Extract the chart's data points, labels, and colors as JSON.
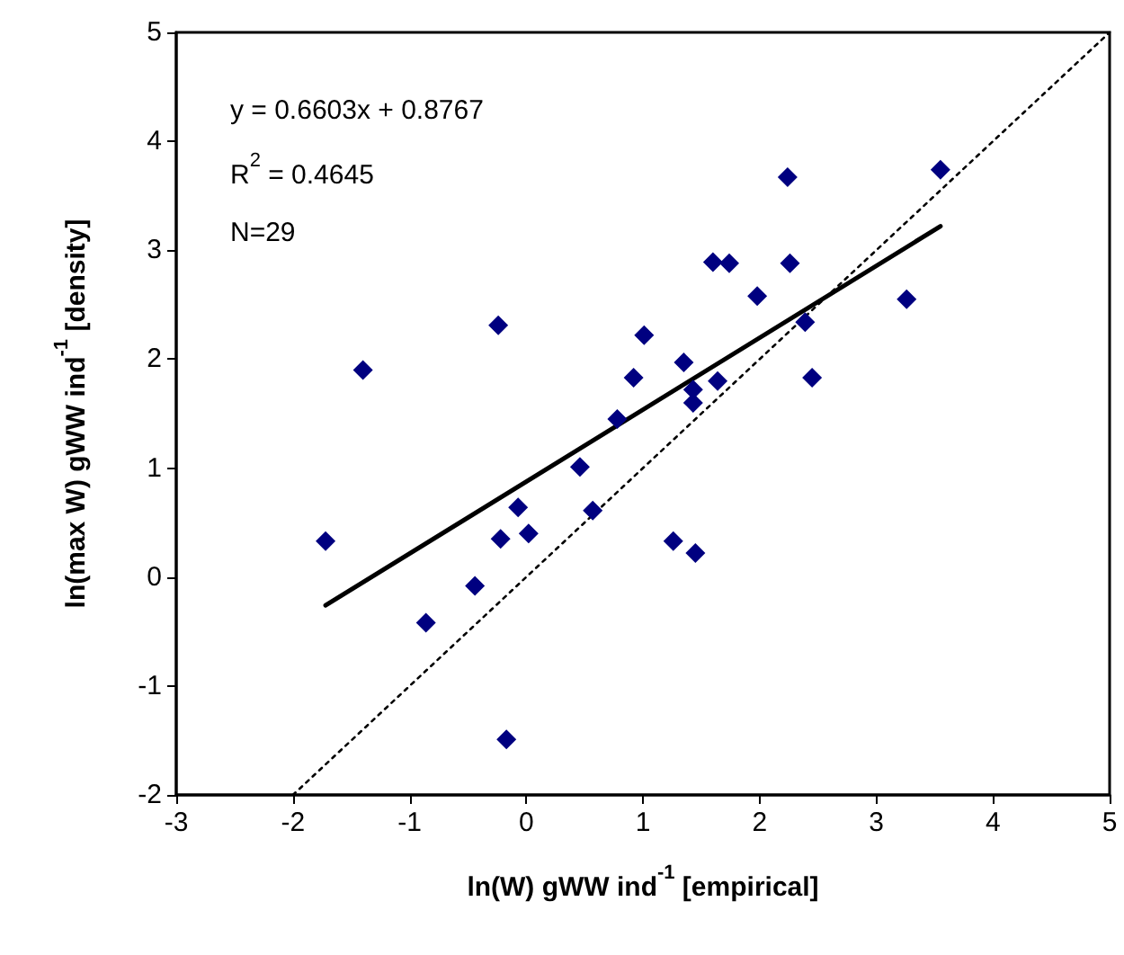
{
  "chart_data": {
    "type": "scatter",
    "xlabel": "ln(W) gWW ind$^{-1}$ [empirical]",
    "ylabel": "ln(max W) gWW ind$^{-1}$ [density]",
    "annotations": [
      "y = 0.6603x + 0.8767",
      "R$^{2}$ = 0.4645",
      "N=29"
    ],
    "xlim": [
      -3,
      5
    ],
    "ylim": [
      -2,
      5
    ],
    "xticks": [
      -3,
      -2,
      -1,
      0,
      1,
      2,
      3,
      4,
      5
    ],
    "yticks": [
      -2,
      -1,
      0,
      1,
      2,
      3,
      4,
      5
    ],
    "grid": false,
    "series": [
      {
        "marker": "diamond",
        "color": "#000080",
        "x": [
          -1.72,
          -1.4,
          -0.86,
          -0.44,
          -0.24,
          -0.22,
          -0.17,
          -0.07,
          0.02,
          0.46,
          0.57,
          0.78,
          0.92,
          1.01,
          1.26,
          1.35,
          1.45,
          1.43,
          1.43,
          1.6,
          1.64,
          1.74,
          1.98,
          2.24,
          2.26,
          2.39,
          2.45,
          3.26,
          3.55
        ],
        "values": [
          0.33,
          1.9,
          -0.42,
          -0.08,
          2.31,
          0.35,
          -1.49,
          0.64,
          0.4,
          1.01,
          0.61,
          1.45,
          1.83,
          2.22,
          0.33,
          1.97,
          0.22,
          1.72,
          1.6,
          2.89,
          1.8,
          2.88,
          2.58,
          3.67,
          2.88,
          2.34,
          1.83,
          2.55,
          3.74
        ]
      },
      {
        "type": "line",
        "marker": "none",
        "line_style": "solid",
        "color": "#000000",
        "x": [
          -1.72,
          3.55
        ],
        "values": [
          -0.26,
          3.22
        ]
      },
      {
        "type": "line",
        "marker": "none",
        "line_style": "dotted",
        "color": "#000000",
        "x": [
          -2,
          5
        ],
        "values": [
          -2,
          5
        ]
      }
    ]
  }
}
